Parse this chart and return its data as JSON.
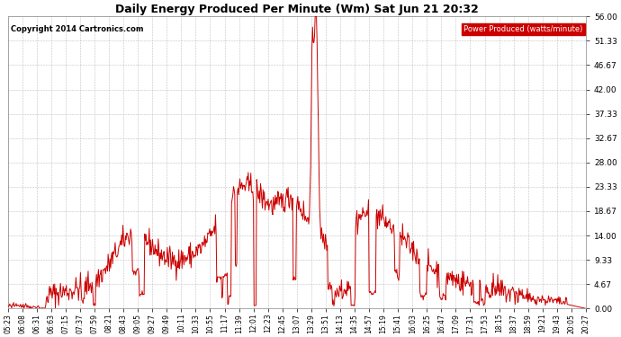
{
  "title": "Daily Energy Produced Per Minute (Wm) Sat Jun 21 20:32",
  "copyright": "Copyright 2014 Cartronics.com",
  "legend_label": "Power Produced (watts/minute)",
  "legend_bg": "#cc0000",
  "legend_fg": "#ffffff",
  "line_color": "#cc0000",
  "background_color": "#ffffff",
  "grid_color": "#bbbbbb",
  "ylim": [
    0,
    56.0
  ],
  "yticks": [
    0.0,
    4.67,
    9.33,
    14.0,
    18.67,
    23.33,
    28.0,
    32.67,
    37.33,
    42.0,
    46.67,
    51.33,
    56.0
  ],
  "xtick_labels": [
    "05:23",
    "06:08",
    "06:31",
    "06:63",
    "07:15",
    "07:37",
    "07:59",
    "08:21",
    "08:43",
    "09:05",
    "09:27",
    "09:49",
    "10:11",
    "10:33",
    "10:55",
    "11:17",
    "11:39",
    "12:01",
    "12:23",
    "12:45",
    "13:07",
    "13:29",
    "13:51",
    "14:13",
    "14:35",
    "14:57",
    "15:19",
    "15:41",
    "16:03",
    "16:25",
    "16:47",
    "17:09",
    "17:31",
    "17:53",
    "18:15",
    "18:37",
    "18:59",
    "19:21",
    "19:43",
    "20:05",
    "20:27"
  ],
  "title_fontsize": 9,
  "copyright_fontsize": 6,
  "legend_fontsize": 6,
  "ytick_fontsize": 6.5,
  "xtick_fontsize": 5.5
}
